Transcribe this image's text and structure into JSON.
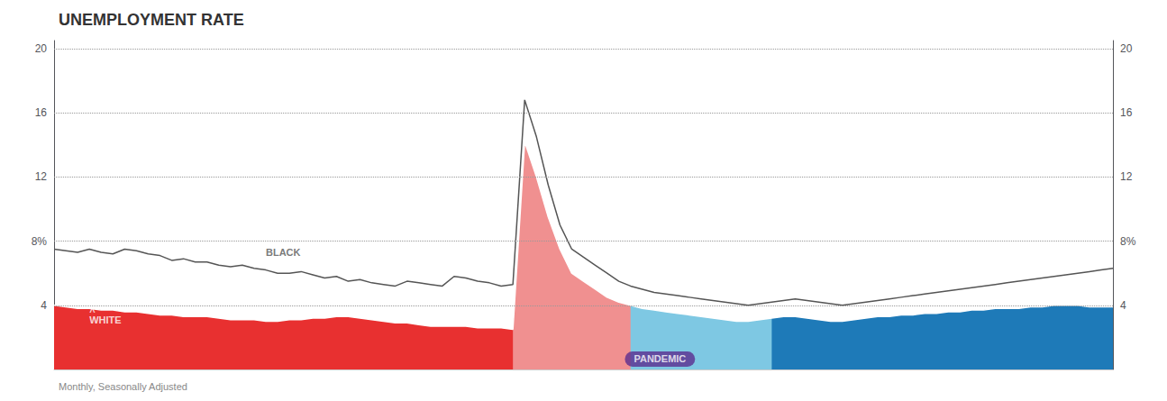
{
  "chart_data": {
    "type": "line",
    "title": "UNEMPLOYMENT RATE",
    "subtitle": "Monthly, Seasonally Adjusted",
    "x": [
      0,
      1,
      2,
      3,
      4,
      5,
      6,
      7,
      8,
      9,
      10,
      11,
      12,
      13,
      14,
      15,
      16,
      17,
      18,
      19,
      20,
      21,
      22,
      23,
      24,
      25,
      26,
      27,
      28,
      29,
      30,
      31,
      32,
      33,
      34,
      35,
      36,
      37,
      38,
      39,
      40,
      41,
      42,
      43,
      44,
      45,
      46,
      47,
      48,
      49,
      50,
      51,
      52,
      53,
      54,
      55,
      56,
      57,
      58,
      59,
      60,
      61,
      62,
      63,
      64,
      65,
      66,
      67,
      68,
      69,
      70,
      71,
      72,
      73,
      74,
      75,
      76,
      77,
      78,
      79,
      80,
      81,
      82,
      83,
      84,
      85,
      86,
      87,
      88,
      89,
      90
    ],
    "xlim": [
      0,
      90
    ],
    "ylim": [
      0,
      20.5
    ],
    "yticks": [
      4,
      {
        "value": 8,
        "label": "8%"
      },
      12,
      16,
      20
    ],
    "grid": true,
    "tick_labels": "y",
    "series": [
      {
        "color": "#ffffff",
        "values": [
          4.0,
          3.9,
          3.8,
          3.8,
          3.7,
          3.7,
          3.6,
          3.6,
          3.5,
          3.4,
          3.4,
          3.3,
          3.3,
          3.3,
          3.2,
          3.1,
          3.1,
          3.1,
          3.0,
          3.0,
          3.1,
          3.1,
          3.2,
          3.2,
          3.3,
          3.3,
          3.2,
          3.1,
          3.0,
          2.9,
          2.9,
          2.8,
          2.7,
          2.7,
          2.7,
          2.7,
          2.6,
          2.6,
          2.6,
          2.5,
          14.2,
          12.0,
          9.5,
          7.5,
          6.0,
          5.5,
          5.0,
          4.5,
          4.2,
          4.0,
          3.8,
          3.7,
          3.6,
          3.5,
          3.4,
          3.3,
          3.2,
          3.1,
          3.0,
          3.0,
          3.1,
          3.2,
          3.3,
          3.3,
          3.2,
          3.1,
          3.0,
          3.0,
          3.1,
          3.2,
          3.3,
          3.3,
          3.4,
          3.4,
          3.5,
          3.5,
          3.6,
          3.6,
          3.7,
          3.7,
          3.8,
          3.8,
          3.8,
          3.9,
          3.9,
          4.0,
          4.0,
          4.0,
          3.9,
          3.9,
          3.9
        ]
      },
      {
        "color": "#555555",
        "values": [
          7.5,
          7.4,
          7.3,
          7.5,
          7.3,
          7.2,
          7.5,
          7.4,
          7.2,
          7.1,
          6.8,
          6.9,
          6.7,
          6.7,
          6.5,
          6.4,
          6.5,
          6.3,
          6.2,
          6.0,
          6.0,
          6.1,
          5.9,
          5.7,
          5.8,
          5.5,
          5.6,
          5.4,
          5.3,
          5.2,
          5.5,
          5.4,
          5.3,
          5.2,
          5.8,
          5.7,
          5.5,
          5.4,
          5.2,
          5.3,
          16.8,
          14.5,
          11.5,
          9.0,
          7.5,
          7.0,
          6.5,
          6.0,
          5.5,
          5.2,
          5.0,
          4.8,
          4.7,
          4.6,
          4.5,
          4.4,
          4.3,
          4.2,
          4.1,
          4.0,
          4.1,
          4.2,
          4.3,
          4.4,
          4.3,
          4.2,
          4.1,
          4.0,
          4.1,
          4.2,
          4.3,
          4.4,
          4.5,
          4.6,
          4.7,
          4.8,
          4.9,
          5.0,
          5.1,
          5.2,
          5.3,
          5.4,
          5.5,
          5.6,
          5.7,
          5.8,
          5.9,
          6.0,
          6.1,
          6.2,
          6.3
        ]
      }
    ],
    "fills": [
      {
        "start": 0,
        "end": 40,
        "color": "#e83030"
      },
      {
        "start": 48,
        "end": 62,
        "color": "#7ec8e3"
      },
      {
        "start": 61,
        "end": 90,
        "color": "#1e7ab8"
      },
      {
        "start": 39,
        "end": 49,
        "color": "#f09090"
      }
    ],
    "annotations": [
      {
        "text": "WHITE",
        "x": 3,
        "y": 2.8,
        "color": "#ffffff"
      },
      {
        "text": "^",
        "x": 3,
        "y": 3.3,
        "color": "#ffffff"
      },
      {
        "text": "BLACK",
        "x": 18,
        "y": 7.0,
        "color": "#555555"
      },
      {
        "text": "PANDEMIC",
        "x": 51.5,
        "y": 0.65,
        "color": "#ffffff",
        "background": "#5b2d8e"
      }
    ]
  }
}
